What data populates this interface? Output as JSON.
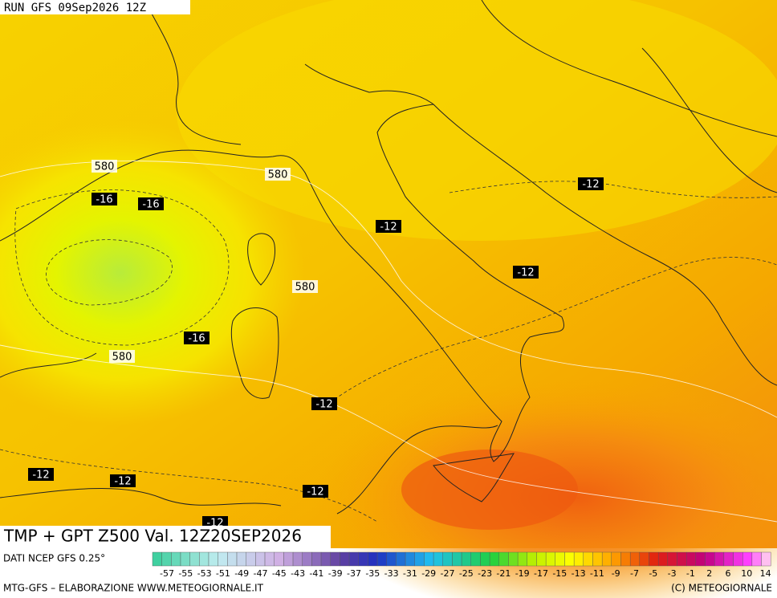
{
  "header": {
    "run": "RUN GFS 09Sep2026 12Z"
  },
  "contour_labels": [
    "580",
    "580",
    "580",
    "580",
    "-16",
    "-16",
    "-16",
    "-12",
    "-12",
    "-12",
    "-12",
    "-12",
    "-12",
    "-12",
    "-12"
  ],
  "title": "TMP + GPT Z500 Val. 12Z20SEP2026",
  "legend": {
    "source": "DATI NCEP GFS 0.25°",
    "ticks": [
      "-57",
      "-55",
      "-53",
      "-51",
      "-49",
      "-47",
      "-45",
      "-43",
      "-41",
      "-39",
      "-37",
      "-35",
      "-33",
      "-31",
      "-29",
      "-27",
      "-25",
      "-23",
      "-21",
      "-19",
      "-17",
      "-15",
      "-13",
      "-11",
      "-9",
      "-7",
      "-5",
      "-3",
      "-1",
      "2",
      "6",
      "10",
      "14"
    ]
  },
  "footer": {
    "left": "MTG-GFS – ELABORAZIONE WWW.METEOGIORNALE.IT",
    "right": "(C) METEOGIORNALE"
  }
}
